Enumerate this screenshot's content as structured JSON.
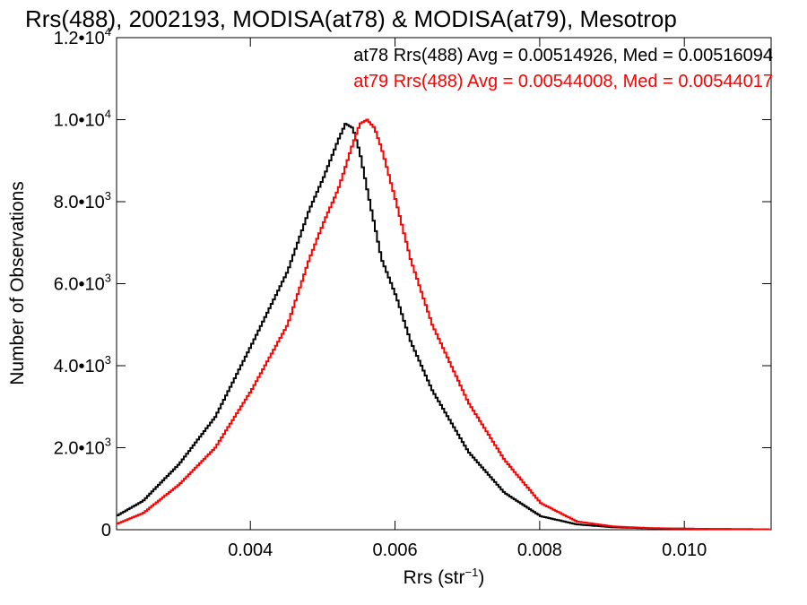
{
  "chart_data": {
    "type": "line",
    "title": "Rrs(488), 2002193, MODISA(at78) & MODISA(at79), Mesotrop",
    "xlabel": "Rrs (str",
    "xlabel_sup": "−1",
    "xlabel_close": ")",
    "ylabel": "Number of Observations",
    "xlim": [
      0.00215,
      0.0112
    ],
    "ylim": [
      0,
      12000
    ],
    "x_ticks": [
      {
        "value": 0.004,
        "label": "0.004"
      },
      {
        "value": 0.006,
        "label": "0.006"
      },
      {
        "value": 0.008,
        "label": "0.008"
      },
      {
        "value": 0.01,
        "label": "0.010"
      }
    ],
    "y_ticks": [
      {
        "value": 0,
        "label": "0",
        "sup": ""
      },
      {
        "value": 2000,
        "label": "2.0•10",
        "sup": "3"
      },
      {
        "value": 4000,
        "label": "4.0•10",
        "sup": "3"
      },
      {
        "value": 6000,
        "label": "6.0•10",
        "sup": "3"
      },
      {
        "value": 8000,
        "label": "8.0•10",
        "sup": "3"
      },
      {
        "value": 10000,
        "label": "1.0•10",
        "sup": "4"
      },
      {
        "value": 12000,
        "label": "1.2•10",
        "sup": "4"
      }
    ],
    "grid": false,
    "series": [
      {
        "name": "at78",
        "stat_label": "at78 Rrs(488) Avg = 0.00514926, Med = 0.00516094",
        "color": "#000000",
        "x": [
          0.00215,
          0.0025,
          0.003,
          0.0035,
          0.004,
          0.0045,
          0.0048,
          0.005,
          0.0052,
          0.0053,
          0.0054,
          0.0055,
          0.0056,
          0.0058,
          0.006,
          0.0062,
          0.0065,
          0.007,
          0.0075,
          0.008,
          0.0085,
          0.009,
          0.0095,
          0.01,
          0.0105,
          0.0112
        ],
        "values": [
          350,
          700,
          1600,
          2750,
          4500,
          6300,
          7800,
          8600,
          9500,
          9900,
          9800,
          9200,
          8300,
          6600,
          5700,
          4600,
          3400,
          1900,
          900,
          330,
          130,
          60,
          35,
          25,
          15,
          10
        ]
      },
      {
        "name": "at79",
        "stat_label": "at79 Rrs(488) Avg = 0.00544008, Med = 0.00544017",
        "color": "#ff0000",
        "x": [
          0.00215,
          0.0025,
          0.003,
          0.0035,
          0.004,
          0.0045,
          0.0048,
          0.005,
          0.0052,
          0.0054,
          0.0055,
          0.0056,
          0.0057,
          0.0058,
          0.006,
          0.0062,
          0.0065,
          0.007,
          0.0075,
          0.008,
          0.0085,
          0.009,
          0.0095,
          0.01,
          0.0105,
          0.0112
        ],
        "values": [
          150,
          400,
          1100,
          2000,
          3400,
          5000,
          6600,
          7500,
          8300,
          9400,
          9900,
          10000,
          9800,
          9300,
          8000,
          6600,
          5000,
          3100,
          1700,
          650,
          200,
          80,
          40,
          25,
          15,
          10
        ]
      }
    ]
  }
}
